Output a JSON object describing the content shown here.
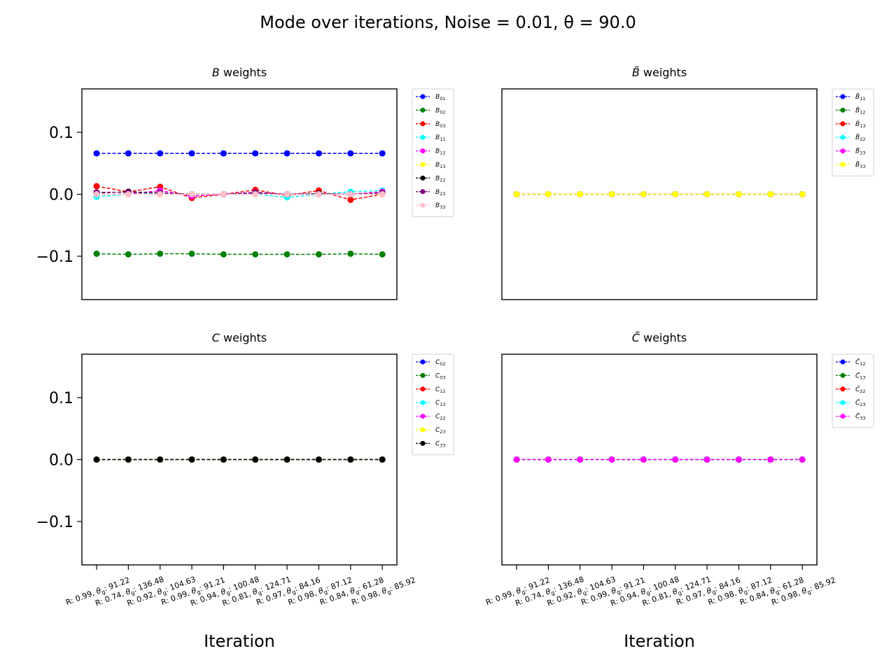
{
  "figure": {
    "title": "Mode over iterations, Noise = 0.01, θ = 90.0"
  },
  "x_tick_labels": [
    "R: 0.99, θg: 91.22",
    "R: 0.74, θg: 136.48",
    "R: 0.92, θg: 104.63",
    "R: 0.99, θg: 91.21",
    "R: 0.94, θg: 100.48",
    "R: 0.81, θg: 124.71",
    "R: 0.97, θg: 84.16",
    "R: 0.98, θg: 87.12",
    "R: 0.84, θg: 61.28",
    "R: 0.98, θg: 85.92"
  ],
  "chart_data": [
    {
      "type": "line",
      "title": "B weights",
      "xlabel": "",
      "ylabel": "",
      "ylim": [
        -0.17,
        0.17
      ],
      "yticks": [
        "0.1",
        "0.0",
        "−0.1"
      ],
      "ytick_values": [
        0.1,
        0.0,
        -0.1
      ],
      "legend_placement": "outside-right",
      "grid": false,
      "series": [
        {
          "name": "B01",
          "color": "#0000ff",
          "values": [
            0.066,
            0.066,
            0.066,
            0.066,
            0.066,
            0.066,
            0.066,
            0.066,
            0.066,
            0.066
          ]
        },
        {
          "name": "B02",
          "color": "#008000",
          "values": [
            -0.096,
            -0.097,
            -0.096,
            -0.096,
            -0.097,
            -0.097,
            -0.097,
            -0.097,
            -0.096,
            -0.097
          ]
        },
        {
          "name": "B03",
          "color": "#ff0000",
          "values": [
            0.013,
            0.004,
            0.012,
            -0.006,
            0.0,
            0.007,
            -0.002,
            0.006,
            -0.009,
            0.0
          ]
        },
        {
          "name": "B11",
          "color": "#00ffff",
          "values": [
            -0.004,
            0.0,
            0.002,
            0.0,
            0.0,
            0.0,
            -0.005,
            0.0,
            0.004,
            0.006
          ]
        },
        {
          "name": "B12",
          "color": "#ff00ff",
          "values": [
            0.0,
            0.0,
            0.006,
            -0.003,
            0.0,
            0.003,
            0.0,
            0.001,
            0.0,
            0.004
          ]
        },
        {
          "name": "B13",
          "color": "#ffff00",
          "values": [
            0.0,
            0.0,
            0.0,
            0.0,
            0.0,
            0.0,
            0.0,
            0.0,
            0.0,
            0.0
          ]
        },
        {
          "name": "B22",
          "color": "#000000",
          "values": [
            0.002,
            0.004,
            0.002,
            0.0,
            0.0,
            0.002,
            0.0,
            0.001,
            0.0,
            0.002
          ]
        },
        {
          "name": "B23",
          "color": "#800080",
          "values": [
            0.003,
            0.003,
            0.002,
            0.0,
            0.0,
            0.001,
            0.0,
            0.0,
            0.0,
            0.002
          ]
        },
        {
          "name": "B33",
          "color": "#ffc0cb",
          "values": [
            0.0,
            0.0,
            0.0,
            0.0,
            0.0,
            0.0,
            0.0,
            0.0,
            0.0,
            0.0
          ]
        }
      ]
    },
    {
      "type": "line",
      "title": "B̃ weights",
      "xlabel": "",
      "ylabel": "",
      "ylim": [
        -0.17,
        0.17
      ],
      "yticks": [],
      "ytick_values": [],
      "legend_placement": "outside-right",
      "grid": false,
      "series": [
        {
          "name": "B̃11",
          "color": "#0000ff",
          "values": [
            0,
            0,
            0,
            0,
            0,
            0,
            0,
            0,
            0,
            0
          ]
        },
        {
          "name": "B̃12",
          "color": "#008000",
          "values": [
            0,
            0,
            0,
            0,
            0,
            0,
            0,
            0,
            0,
            0
          ]
        },
        {
          "name": "B̃13",
          "color": "#ff0000",
          "values": [
            0,
            0,
            0,
            0,
            0,
            0,
            0,
            0,
            0,
            0
          ]
        },
        {
          "name": "B̃22",
          "color": "#00ffff",
          "values": [
            0,
            0,
            0,
            0,
            0,
            0,
            0,
            0,
            0,
            0
          ]
        },
        {
          "name": "B̃23",
          "color": "#ff00ff",
          "values": [
            0,
            0,
            0,
            0,
            0,
            0,
            0,
            0,
            0,
            0
          ]
        },
        {
          "name": "B̃33",
          "color": "#ffff00",
          "values": [
            0,
            0,
            0,
            0,
            0,
            0,
            0,
            0,
            0,
            0
          ]
        }
      ]
    },
    {
      "type": "line",
      "title": "C weights",
      "xlabel": "Iteration",
      "ylabel": "",
      "ylim": [
        -0.17,
        0.17
      ],
      "yticks": [
        "0.1",
        "0.0",
        "−0.1"
      ],
      "ytick_values": [
        0.1,
        0.0,
        -0.1
      ],
      "legend_placement": "outside-right",
      "grid": false,
      "series": [
        {
          "name": "C02",
          "color": "#0000ff",
          "values": [
            0,
            0,
            0,
            0,
            0,
            0,
            0,
            0,
            0,
            0
          ]
        },
        {
          "name": "C03",
          "color": "#008000",
          "values": [
            0,
            0,
            0,
            0,
            0,
            0,
            0,
            0,
            0,
            0
          ]
        },
        {
          "name": "C12",
          "color": "#ff0000",
          "values": [
            0,
            0,
            0,
            0,
            0,
            0,
            0,
            0,
            0,
            0
          ]
        },
        {
          "name": "C13",
          "color": "#00ffff",
          "values": [
            0,
            0,
            0,
            0,
            0,
            0,
            0,
            0,
            0,
            0
          ]
        },
        {
          "name": "C22",
          "color": "#ff00ff",
          "values": [
            0,
            0,
            0,
            0,
            0,
            0,
            0,
            0,
            0,
            0
          ]
        },
        {
          "name": "C23",
          "color": "#ffff00",
          "values": [
            0,
            0,
            0,
            0,
            0,
            0,
            0,
            0,
            0,
            0
          ]
        },
        {
          "name": "C33",
          "color": "#000000",
          "values": [
            0,
            0,
            0,
            0,
            0,
            0,
            0,
            0,
            0,
            0
          ]
        }
      ]
    },
    {
      "type": "line",
      "title": "C̃ weights",
      "xlabel": "Iteration",
      "ylabel": "",
      "ylim": [
        -0.17,
        0.17
      ],
      "yticks": [],
      "ytick_values": [],
      "legend_placement": "outside-right",
      "grid": false,
      "series": [
        {
          "name": "C̃12",
          "color": "#0000ff",
          "values": [
            0,
            0,
            0,
            0,
            0,
            0,
            0,
            0,
            0,
            0
          ]
        },
        {
          "name": "C̃13",
          "color": "#008000",
          "values": [
            0,
            0,
            0,
            0,
            0,
            0,
            0,
            0,
            0,
            0
          ]
        },
        {
          "name": "C̃22",
          "color": "#ff0000",
          "values": [
            0,
            0,
            0,
            0,
            0,
            0,
            0,
            0,
            0,
            0
          ]
        },
        {
          "name": "C̃23",
          "color": "#00ffff",
          "values": [
            0,
            0,
            0,
            0,
            0,
            0,
            0,
            0,
            0,
            0
          ]
        },
        {
          "name": "C̃33",
          "color": "#ff00ff",
          "values": [
            0,
            0,
            0,
            0,
            0,
            0,
            0,
            0,
            0,
            0
          ]
        }
      ]
    }
  ]
}
